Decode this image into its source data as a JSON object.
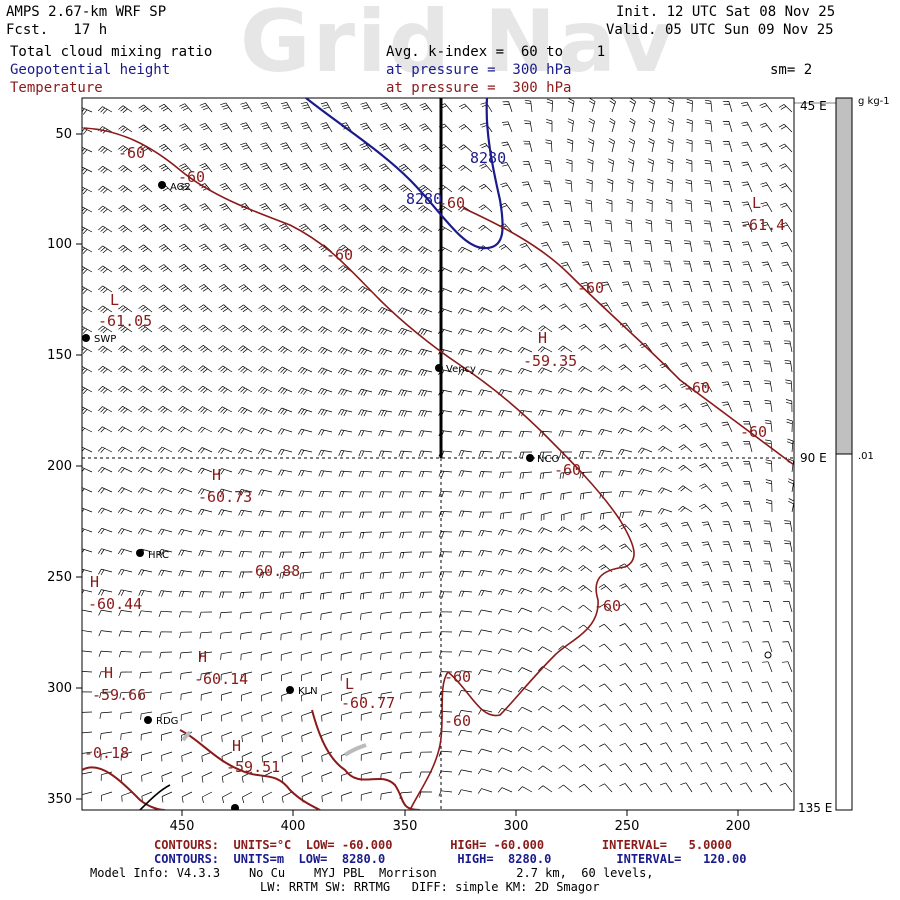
{
  "watermark": "Grid Nav",
  "header": {
    "model": "AMPS 2.67-km WRF SP",
    "forecast": "Fcst.   17 h",
    "init": "Init. 12 UTC Sat 08 Nov 25",
    "valid": "Valid. 05 UTC Sun 09 Nov 25",
    "field1": "Total cloud mixing ratio",
    "field2": "Geopotential height",
    "field3": "Temperature",
    "avg": "Avg. k-index =  60 to    1",
    "pressure_blue": "at pressure =  300 hPa",
    "pressure_red": "at pressure =  300 hPa",
    "sm": "sm= 2"
  },
  "axes": {
    "x_ticks": [
      "450",
      "400",
      "350",
      "300",
      "250",
      "200"
    ],
    "y_ticks": [
      "50",
      "100",
      "150",
      "200",
      "250",
      "300",
      "350"
    ]
  },
  "colorbar": {
    "unit": "g kg-1",
    "value": ".01",
    "lon_labels": [
      "45 E",
      "90 E",
      "135 E"
    ]
  },
  "stations": [
    "AG2",
    "SWP",
    "HRC",
    "KLN",
    "RDG",
    "Vency",
    "NCO"
  ],
  "contour_labels": {
    "blue": [
      "8280",
      "8280"
    ],
    "red": [
      "-60",
      "-60",
      "-60",
      "-60",
      "-60",
      "-60",
      "-60",
      "-60",
      "-60",
      "-60",
      "-60"
    ],
    "marks": [
      "L",
      "-61.05",
      "H",
      "-59.35",
      "H",
      "-60.73",
      "-60.88",
      "H",
      "-60.44",
      "H",
      "-60.14",
      "H",
      "-59.66",
      "L",
      "-60.77",
      "H",
      "-59.51",
      "-0.18",
      "L",
      "-61.4"
    ]
  },
  "footer": {
    "contours_red": "CONTOURS:  UNITS=°C  LOW= -60.000        HIGH= -60.000        INTERVAL=   5.0000",
    "contours_blue": "CONTOURS:  UNITS=m  LOW=  8280.0          HIGH=  8280.0         INTERVAL=   120.00",
    "model_info": "Model Info: V4.3.3    No Cu    MYJ PBL  Morrison           2.7 km,  60 levels,",
    "physics": "LW: RRTM SW: RRTMG   DIFF: simple KM: 2D Smagor"
  },
  "colors": {
    "blue": "#1a1a8c",
    "red": "#8b1a1a",
    "gray": "#c0c0c0"
  }
}
